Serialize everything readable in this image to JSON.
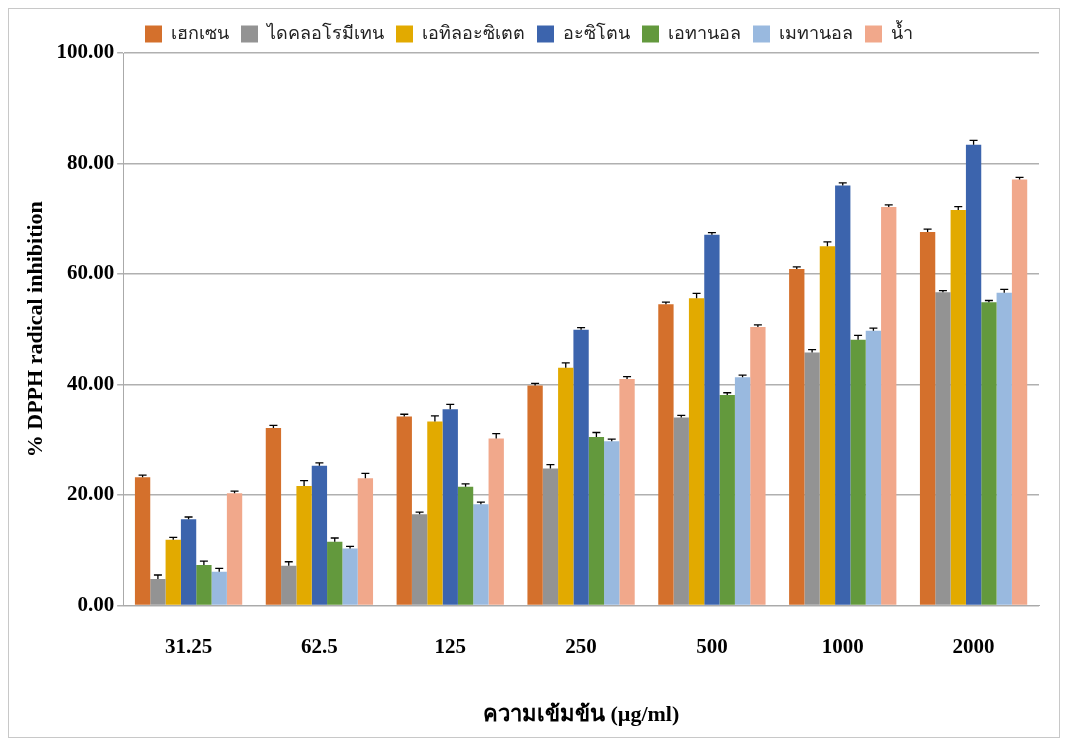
{
  "chart_data": {
    "type": "bar",
    "xlabel": "ความเข้มข้น (µg/ml)",
    "ylabel": "% DPPH radical inhibition",
    "categories": [
      "31.25",
      "62.5",
      "125",
      "250",
      "500",
      "1000",
      "2000"
    ],
    "ylim": [
      0,
      100
    ],
    "yticks": [
      {
        "value": 0,
        "label": "0.00"
      },
      {
        "value": 20,
        "label": "20.00"
      },
      {
        "value": 40,
        "label": "40.00"
      },
      {
        "value": 60,
        "label": "60.00"
      },
      {
        "value": 80,
        "label": "80.00"
      },
      {
        "value": 100,
        "label": "100.00"
      }
    ],
    "grid": "y",
    "legend": "top",
    "series": [
      {
        "name": "เฮกเซน",
        "color": "#d4702c",
        "values": [
          23.2,
          32.1,
          34.2,
          39.8,
          54.5,
          60.9,
          67.6
        ],
        "errors": [
          0.4,
          0.5,
          0.4,
          0.4,
          0.4,
          0.4,
          0.5
        ]
      },
      {
        "name": "ไดคลอโรมีเทน",
        "color": "#939393",
        "values": [
          4.8,
          7.2,
          16.5,
          24.8,
          34.0,
          45.8,
          56.7
        ],
        "errors": [
          0.7,
          0.7,
          0.4,
          0.7,
          0.4,
          0.5,
          0.3
        ]
      },
      {
        "name": "เอทิลอะซิเตต",
        "color": "#e2aa00",
        "values": [
          11.9,
          21.6,
          33.3,
          43.0,
          55.6,
          65.0,
          71.6
        ],
        "errors": [
          0.4,
          1.0,
          1.0,
          0.9,
          0.9,
          0.8,
          0.6
        ]
      },
      {
        "name": "อะซิโตน",
        "color": "#3c64ad",
        "values": [
          15.6,
          25.3,
          35.5,
          49.9,
          67.1,
          76.0,
          83.4
        ],
        "errors": [
          0.4,
          0.5,
          0.9,
          0.4,
          0.4,
          0.5,
          0.8
        ]
      },
      {
        "name": "เอทานอล",
        "color": "#63993d",
        "values": [
          7.3,
          11.5,
          21.5,
          30.5,
          38.1,
          48.1,
          54.9
        ],
        "errors": [
          0.7,
          0.7,
          0.5,
          0.8,
          0.4,
          0.8,
          0.3
        ]
      },
      {
        "name": "เมทานอล",
        "color": "#99b9df",
        "values": [
          6.1,
          10.3,
          18.3,
          29.7,
          41.3,
          49.7,
          56.6
        ],
        "errors": [
          0.6,
          0.4,
          0.4,
          0.4,
          0.4,
          0.5,
          0.6
        ]
      },
      {
        "name": "น้ำ",
        "color": "#f1a88b",
        "values": [
          20.3,
          23.0,
          30.2,
          41.0,
          50.4,
          72.1,
          77.1
        ],
        "errors": [
          0.4,
          0.9,
          0.9,
          0.4,
          0.4,
          0.4,
          0.4
        ]
      }
    ]
  }
}
